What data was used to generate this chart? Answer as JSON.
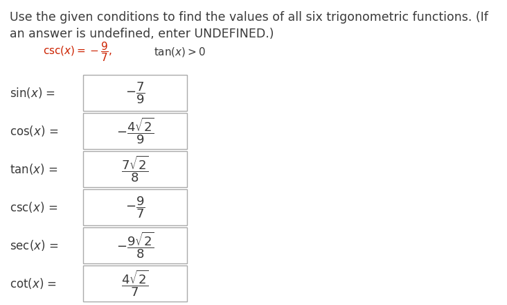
{
  "title_line1": "Use the given conditions to find the values of all six trigonometric functions. (If",
  "title_line2": "an answer is undefined, enter UNDEFINED.)",
  "condition_text": "csc($x$) = $-\\dfrac{9}{7}$,   tan($x$) > 0",
  "background_color": "#ffffff",
  "text_color": "#3a3a3a",
  "condition_color": "#cc2200",
  "box_edge_color": "#aaaaaa",
  "functions": [
    {
      "label": "sin($x$) =",
      "expr": "$-\\dfrac{7}{9}$",
      "has_minus": true
    },
    {
      "label": "cos($x$) =",
      "expr": "$-\\dfrac{4\\sqrt{2}}{9}$",
      "has_minus": true
    },
    {
      "label": "tan($x$) =",
      "expr": "$\\dfrac{7\\sqrt{2}}{8}$",
      "has_minus": false
    },
    {
      "label": "csc($x$) =",
      "expr": "$-\\dfrac{9}{7}$",
      "has_minus": true
    },
    {
      "label": "sec($x$) =",
      "expr": "$-\\dfrac{9\\sqrt{2}}{8}$",
      "has_minus": true
    },
    {
      "label": "cot($x$) =",
      "expr": "$\\dfrac{4\\sqrt{2}}{7}$",
      "has_minus": false
    }
  ],
  "title_fontsize": 12.5,
  "label_fontsize": 12,
  "expr_fontsize": 13,
  "cond_fontsize": 11
}
